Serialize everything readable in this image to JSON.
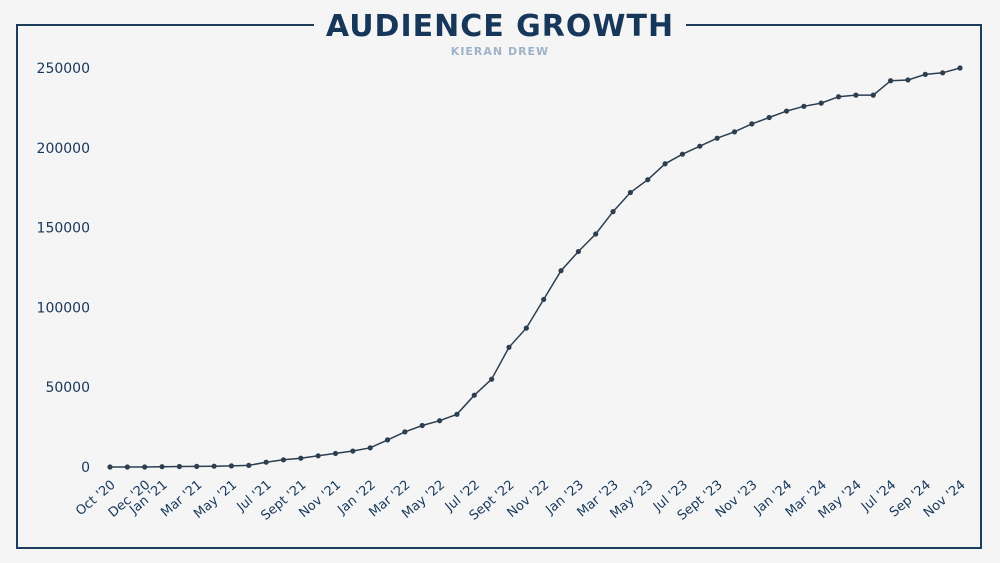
{
  "header": {
    "title": "AUDIENCE GROWTH",
    "subtitle": "KIERAN DREW"
  },
  "colors": {
    "frame": "#1c3d5c",
    "title": "#16375a",
    "subtitle": "#9fb3c8",
    "line": "#2c3e50",
    "background": "#f5f5f5"
  },
  "chart_data": {
    "type": "line",
    "title": "AUDIENCE GROWTH",
    "subtitle": "KIERAN DREW",
    "xlabel": "",
    "ylabel": "",
    "ylim": [
      0,
      250000
    ],
    "yticks": [
      0,
      50000,
      100000,
      150000,
      200000,
      250000
    ],
    "grid": false,
    "legend": "none",
    "xtick_labels": [
      "Oct '20",
      "Dec '20",
      "Jan '21",
      "Mar '21",
      "May '21",
      "Jul '21",
      "Sept '21",
      "Nov '21",
      "Jan '22",
      "Mar '22",
      "May '22",
      "Jul '22",
      "Sept '22",
      "Nov '22",
      "Jan '23",
      "Mar '23",
      "May '23",
      "Jul '23",
      "Sept '23",
      "Nov '23",
      "Jan '24",
      "Mar '24",
      "May '24",
      "Jul '24",
      "Sep '24",
      "Nov '24"
    ],
    "xtick_index": [
      0,
      2,
      3,
      5,
      7,
      9,
      11,
      13,
      15,
      17,
      19,
      21,
      23,
      25,
      27,
      29,
      31,
      33,
      35,
      37,
      39,
      41,
      43,
      45,
      47,
      49
    ],
    "series": [
      {
        "values": [
          0,
          0,
          0,
          200,
          300,
          400,
          500,
          700,
          1000,
          3000,
          4500,
          5500,
          7000,
          8500,
          10000,
          12000,
          17000,
          22000,
          26000,
          29000,
          33000,
          45000,
          55000,
          75000,
          87000,
          105000,
          123000,
          135000,
          146000,
          160000,
          172000,
          180000,
          190000,
          196000,
          201000,
          206000,
          210000,
          215000,
          219000,
          223000,
          226000,
          228000,
          232000,
          233000,
          233000,
          242000,
          242500,
          246000,
          247000,
          250000
        ]
      }
    ]
  }
}
